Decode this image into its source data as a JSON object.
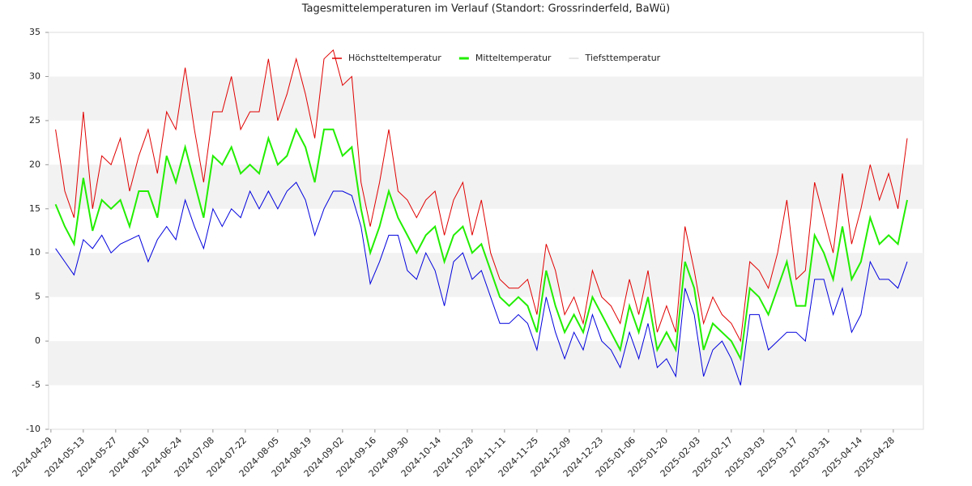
{
  "chart_data": {
    "type": "line",
    "title": "Tagesmittelemperaturen im Verlauf (Standort: Grossrinderfeld, BaWü)",
    "x": [
      "2024-05-01",
      "2024-05-05",
      "2024-05-09",
      "2024-05-13",
      "2024-05-17",
      "2024-05-21",
      "2024-05-25",
      "2024-05-29",
      "2024-06-02",
      "2024-06-06",
      "2024-06-10",
      "2024-06-14",
      "2024-06-18",
      "2024-06-22",
      "2024-06-26",
      "2024-06-30",
      "2024-07-04",
      "2024-07-08",
      "2024-07-12",
      "2024-07-16",
      "2024-07-20",
      "2024-07-24",
      "2024-07-28",
      "2024-08-01",
      "2024-08-05",
      "2024-08-09",
      "2024-08-13",
      "2024-08-17",
      "2024-08-21",
      "2024-08-25",
      "2024-08-29",
      "2024-09-02",
      "2024-09-06",
      "2024-09-10",
      "2024-09-14",
      "2024-09-18",
      "2024-09-22",
      "2024-09-26",
      "2024-09-30",
      "2024-10-04",
      "2024-10-08",
      "2024-10-12",
      "2024-10-16",
      "2024-10-20",
      "2024-10-24",
      "2024-10-28",
      "2024-11-01",
      "2024-11-05",
      "2024-11-09",
      "2024-11-13",
      "2024-11-17",
      "2024-11-21",
      "2024-11-25",
      "2024-11-29",
      "2024-12-03",
      "2024-12-07",
      "2024-12-11",
      "2024-12-15",
      "2024-12-19",
      "2024-12-23",
      "2024-12-27",
      "2024-12-31",
      "2025-01-04",
      "2025-01-08",
      "2025-01-12",
      "2025-01-16",
      "2025-01-20",
      "2025-01-24",
      "2025-01-28",
      "2025-02-01",
      "2025-02-05",
      "2025-02-09",
      "2025-02-13",
      "2025-02-17",
      "2025-02-21",
      "2025-02-25",
      "2025-03-01",
      "2025-03-05",
      "2025-03-09",
      "2025-03-13",
      "2025-03-17",
      "2025-03-21",
      "2025-03-25",
      "2025-03-29",
      "2025-04-02",
      "2025-04-06",
      "2025-04-10",
      "2025-04-14",
      "2025-04-18",
      "2025-04-22",
      "2025-04-26",
      "2025-04-30",
      "2025-05-04"
    ],
    "series": [
      {
        "name": "Höchstteltemperatur",
        "color": "#e00000",
        "values": [
          24,
          17,
          14,
          26,
          15,
          21,
          20,
          23,
          17,
          21,
          24,
          19,
          26,
          24,
          31,
          24,
          18,
          26,
          26,
          30,
          24,
          26,
          26,
          32,
          25,
          28,
          32,
          28,
          23,
          32,
          33,
          29,
          30,
          18,
          13,
          18,
          24,
          17,
          16,
          14,
          16,
          17,
          12,
          16,
          18,
          12,
          16,
          10,
          7,
          6,
          6,
          7,
          3,
          11,
          8,
          3,
          5,
          2,
          8,
          5,
          4,
          2,
          7,
          3,
          8,
          1,
          4,
          1,
          13,
          8,
          2,
          5,
          3,
          2,
          0,
          9,
          8,
          6,
          10,
          16,
          7,
          8,
          18,
          14,
          10,
          19,
          11,
          15,
          20,
          16,
          19,
          15,
          23
        ]
      },
      {
        "name": "Mitteltemperatur",
        "color": "#22ee00",
        "values": [
          15.5,
          13,
          11,
          18.5,
          12.5,
          16,
          15,
          16,
          13,
          17,
          17,
          14,
          21,
          18,
          22,
          18,
          14,
          21,
          20,
          22,
          19,
          20,
          19,
          23,
          20,
          21,
          24,
          22,
          18,
          24,
          24,
          21,
          22,
          15,
          10,
          13,
          17,
          14,
          12,
          10,
          12,
          13,
          9,
          12,
          13,
          10,
          11,
          8,
          5,
          4,
          5,
          4,
          1,
          8,
          4,
          1,
          3,
          1,
          5,
          3,
          1,
          -1,
          4,
          1,
          5,
          -1,
          1,
          -1,
          9,
          6,
          -1,
          2,
          1,
          0,
          -2,
          6,
          5,
          3,
          6,
          9,
          4,
          4,
          12,
          10,
          7,
          13,
          7,
          9,
          14,
          11,
          12,
          11,
          16
        ]
      },
      {
        "name": "Tiefsttemperatur",
        "color": "#0000dd",
        "legend_color": "#dddddd",
        "values": [
          10.5,
          9,
          7.5,
          11.5,
          10.5,
          12,
          10,
          11,
          11.5,
          12,
          9,
          11.5,
          13,
          11.5,
          16,
          13,
          10.5,
          15,
          13,
          15,
          14,
          17,
          15,
          17,
          15,
          17,
          18,
          16,
          12,
          15,
          17,
          17,
          16.5,
          13,
          6.5,
          9,
          12,
          12,
          8,
          7,
          10,
          8,
          4,
          9,
          10,
          7,
          8,
          5,
          2,
          2,
          3,
          2,
          -1,
          5,
          1,
          -2,
          1,
          -1,
          3,
          0,
          -1,
          -3,
          1,
          -2,
          2,
          -3,
          -2,
          -4,
          6,
          3,
          -4,
          -1,
          0,
          -2,
          -5,
          3,
          3,
          -1,
          0,
          1,
          1,
          0,
          7,
          7,
          3,
          6,
          1,
          3,
          9,
          7,
          7,
          6,
          9
        ]
      }
    ],
    "xlim": [
      "2024-04-28",
      "2025-05-11"
    ],
    "xticks": [
      "2024-04-29",
      "2024-05-13",
      "2024-05-27",
      "2024-06-10",
      "2024-06-24",
      "2024-07-08",
      "2024-07-22",
      "2024-08-05",
      "2024-08-19",
      "2024-09-02",
      "2024-09-16",
      "2024-09-30",
      "2024-10-14",
      "2024-10-28",
      "2024-11-11",
      "2024-11-25",
      "2024-12-09",
      "2024-12-23",
      "2025-01-06",
      "2025-01-20",
      "2025-02-03",
      "2025-02-17",
      "2025-03-03",
      "2025-03-17",
      "2025-03-31",
      "2025-04-14",
      "2025-04-28"
    ],
    "ylim": [
      -10,
      35
    ],
    "yticks": [
      -10,
      -5,
      0,
      5,
      10,
      15,
      20,
      25,
      30,
      35
    ],
    "grid": "bands",
    "legend": "top"
  }
}
